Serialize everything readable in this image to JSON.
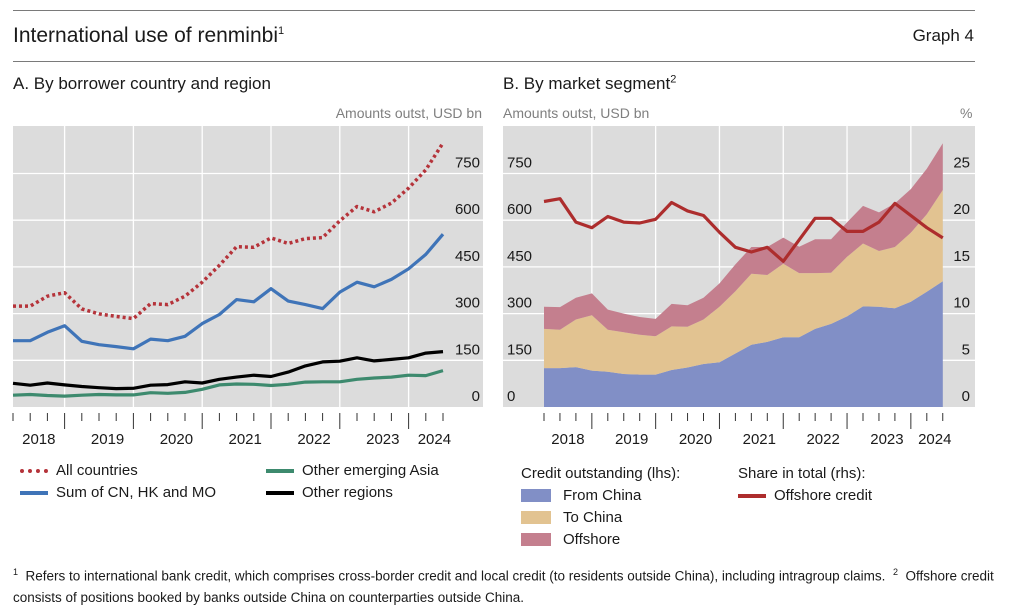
{
  "header": {
    "title": "International use of renminbi",
    "title_note": "1",
    "graph_number": "Graph 4"
  },
  "colors": {
    "all_countries": "#b5333a",
    "sum_cn_hk_mo": "#3f74b8",
    "other_emerging_asia": "#3d8a6e",
    "other_regions": "#000000",
    "from_china": "#818fc6",
    "to_china": "#e2c391",
    "offshore": "#c47f8e",
    "offshore_share": "#ad2d2d",
    "plot_bg": "#dcdcdc"
  },
  "chart_data": [
    {
      "type": "line",
      "panel": "A",
      "title": "A. By borrower country and region",
      "ylabel": "Amounts outst, USD bn",
      "ylim": [
        0,
        870
      ],
      "yticks": [
        0,
        150,
        300,
        450,
        600,
        750
      ],
      "ytick_labels": [
        "0",
        "150",
        "300",
        "450",
        "600",
        "750"
      ],
      "xtick_labels": [
        "2018",
        "2019",
        "2020",
        "2021",
        "2022",
        "2023",
        "2024"
      ],
      "x": [
        "2018Q1",
        "2018Q2",
        "2018Q3",
        "2018Q4",
        "2019Q1",
        "2019Q2",
        "2019Q3",
        "2019Q4",
        "2020Q1",
        "2020Q2",
        "2020Q3",
        "2020Q4",
        "2021Q1",
        "2021Q2",
        "2021Q3",
        "2021Q4",
        "2022Q1",
        "2022Q2",
        "2022Q3",
        "2022Q4",
        "2023Q1",
        "2023Q2",
        "2023Q3",
        "2023Q4",
        "2024Q1",
        "2024Q2"
      ],
      "grid": true,
      "legend_position": "bottom",
      "series": [
        {
          "key": "all_countries",
          "name": "All countries",
          "style": "dotted",
          "values": [
            324,
            324,
            356,
            367,
            315,
            299,
            291,
            284,
            332,
            329,
            356,
            401,
            455,
            515,
            513,
            543,
            525,
            541,
            544,
            598,
            644,
            627,
            655,
            703,
            762,
            848
          ]
        },
        {
          "key": "sum_cn_hk_mo",
          "name": "Sum of CN, HK and MO",
          "style": "solid",
          "values": [
            213,
            213,
            240,
            261,
            211,
            200,
            194,
            187,
            218,
            213,
            227,
            268,
            297,
            345,
            338,
            380,
            340,
            329,
            316,
            369,
            401,
            386,
            410,
            444,
            490,
            555
          ]
        },
        {
          "key": "other_emerging_asia",
          "name": "Other emerging Asia",
          "style": "solid",
          "values": [
            38,
            40,
            37,
            35,
            38,
            40,
            39,
            39,
            46,
            44,
            47,
            57,
            71,
            74,
            73,
            69,
            73,
            80,
            81,
            81,
            89,
            93,
            96,
            102,
            101,
            117
          ]
        },
        {
          "key": "other_regions",
          "name": "Other regions",
          "style": "solid",
          "values": [
            76,
            70,
            77,
            71,
            66,
            62,
            59,
            60,
            70,
            72,
            81,
            77,
            89,
            96,
            102,
            98,
            112,
            132,
            145,
            147,
            158,
            148,
            153,
            158,
            173,
            178
          ]
        }
      ]
    },
    {
      "type": "area",
      "panel": "B",
      "title": "B. By market segment",
      "title_note": "2",
      "ylabel": "Amounts outst, USD bn",
      "ylabel_right": "%",
      "ylim": [
        0,
        870
      ],
      "ylim_right": [
        0,
        29
      ],
      "yticks": [
        0,
        150,
        300,
        450,
        600,
        750
      ],
      "ytick_labels": [
        "0",
        "150",
        "300",
        "450",
        "600",
        "750"
      ],
      "yticks_right": [
        0,
        5,
        10,
        15,
        20,
        25
      ],
      "ytick_labels_right": [
        "0",
        "5",
        "10",
        "15",
        "20",
        "25"
      ],
      "xtick_labels": [
        "2018",
        "2019",
        "2020",
        "2021",
        "2022",
        "2023",
        "2024"
      ],
      "x": [
        "2018Q1",
        "2018Q2",
        "2018Q3",
        "2018Q4",
        "2019Q1",
        "2019Q2",
        "2019Q3",
        "2019Q4",
        "2020Q1",
        "2020Q2",
        "2020Q3",
        "2020Q4",
        "2021Q1",
        "2021Q2",
        "2021Q3",
        "2021Q4",
        "2022Q1",
        "2022Q2",
        "2022Q3",
        "2022Q4",
        "2023Q1",
        "2023Q2",
        "2023Q3",
        "2023Q4",
        "2024Q1",
        "2024Q2"
      ],
      "grid": true,
      "legend_position": "bottom",
      "stacked": true,
      "series": [
        {
          "key": "from_china",
          "name": "From China",
          "axis": "left",
          "values": [
            125,
            125,
            128,
            117,
            113,
            106,
            104,
            104,
            119,
            127,
            138,
            144,
            172,
            200,
            209,
            224,
            224,
            251,
            267,
            291,
            323,
            322,
            317,
            338,
            370,
            404
          ]
        },
        {
          "key": "to_china",
          "name": "To China",
          "axis": "left",
          "values": [
            126,
            123,
            153,
            178,
            135,
            134,
            128,
            123,
            140,
            131,
            143,
            178,
            200,
            228,
            215,
            236,
            206,
            179,
            164,
            191,
            202,
            179,
            197,
            222,
            249,
            293
          ]
        },
        {
          "key": "offshore",
          "name": "Offshore",
          "axis": "left",
          "values": [
            71,
            73,
            70,
            70,
            65,
            60,
            57,
            56,
            72,
            69,
            70,
            75,
            86,
            86,
            90,
            84,
            85,
            109,
            108,
            111,
            121,
            124,
            140,
            140,
            146,
            150
          ]
        },
        {
          "key": "offshore_share",
          "name": "Offshore credit",
          "axis": "right",
          "type": "line",
          "values": [
            22.0,
            22.3,
            19.8,
            19.2,
            20.4,
            19.8,
            19.7,
            20.1,
            21.9,
            21.0,
            20.5,
            18.7,
            17.1,
            16.6,
            17.1,
            15.6,
            17.9,
            20.2,
            20.2,
            18.8,
            18.8,
            19.8,
            21.8,
            20.5,
            19.2,
            18.1
          ]
        }
      ]
    }
  ],
  "legend_a": [
    {
      "key": "all_countries",
      "label": "All countries"
    },
    {
      "key": "sum_cn_hk_mo",
      "label": "Sum of CN, HK and MO"
    },
    {
      "key": "other_emerging_asia",
      "label": "Other emerging Asia"
    },
    {
      "key": "other_regions",
      "label": "Other regions"
    }
  ],
  "legend_b": {
    "lhs_heading": "Credit outstanding (lhs):",
    "rhs_heading": "Share in total (rhs):",
    "items": [
      {
        "key": "from_china",
        "label": "From China"
      },
      {
        "key": "to_china",
        "label": "To China"
      },
      {
        "key": "offshore",
        "label": "Offshore"
      },
      {
        "key": "offshore_share",
        "label": "Offshore credit"
      }
    ]
  },
  "footnotes": {
    "note1_mark": "1",
    "note1": "Refers to international bank credit, which comprises cross-border credit and local credit (to residents outside China), including intragroup claims.",
    "note2_mark": "2",
    "note2": "Offshore credit consists of positions booked by banks outside China on counterparties outside China."
  }
}
